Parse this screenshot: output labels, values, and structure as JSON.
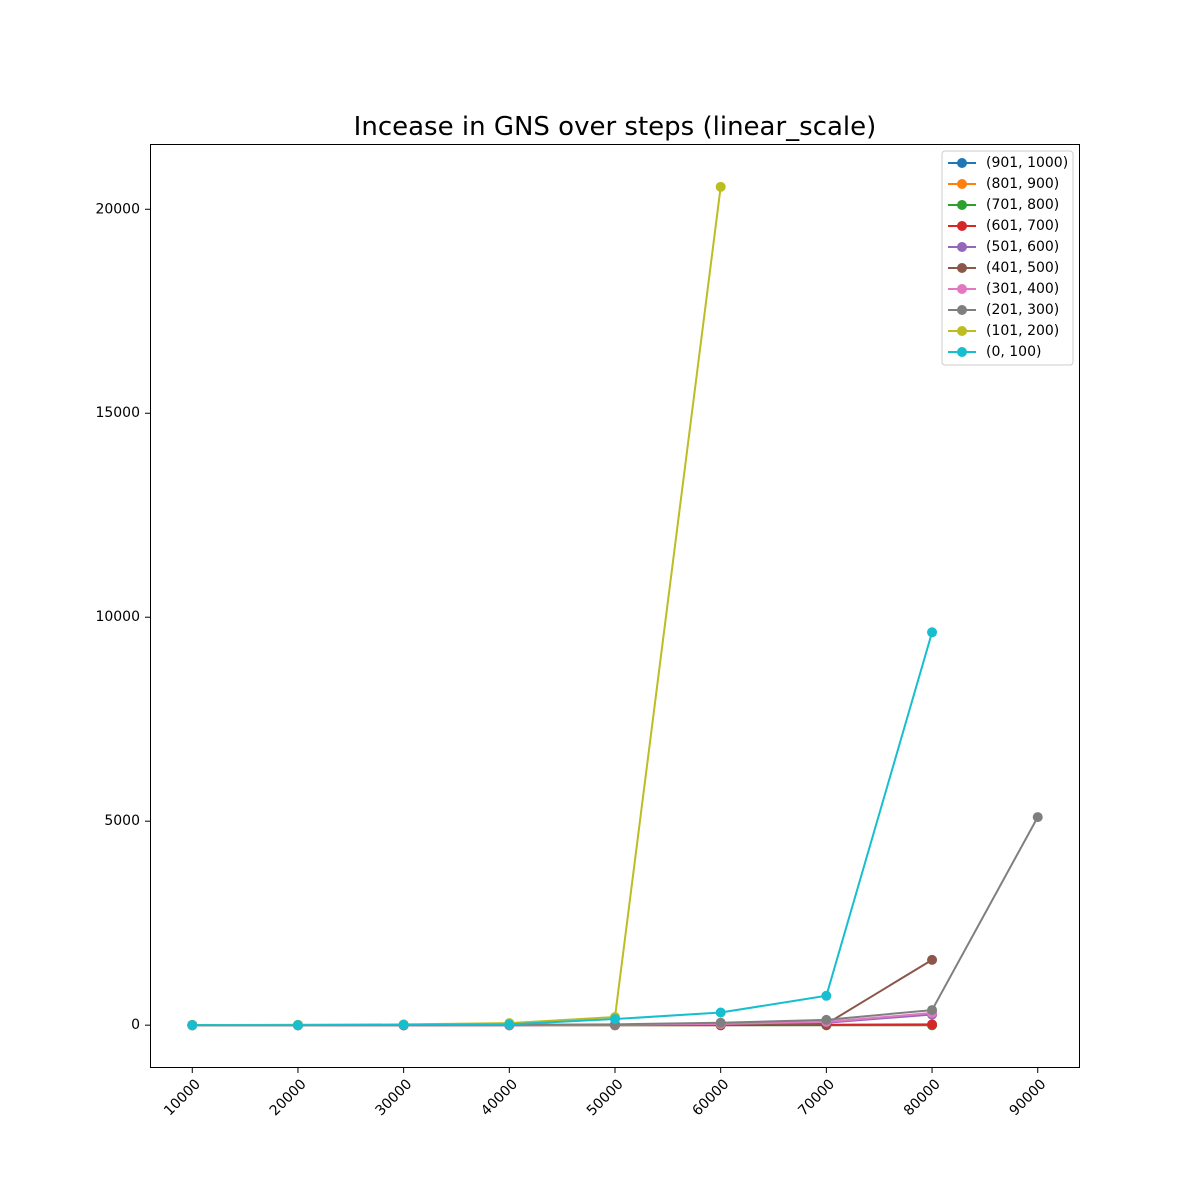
{
  "chart_data": {
    "type": "line",
    "title": "Incease in GNS over steps (linear_scale)",
    "xlabel": "",
    "ylabel": "",
    "x_ticks": [
      10000,
      20000,
      30000,
      40000,
      50000,
      60000,
      70000,
      80000,
      90000
    ],
    "y_ticks": [
      0,
      5000,
      10000,
      15000,
      20000
    ],
    "xlim": [
      6000,
      94000
    ],
    "ylim": [
      -1050,
      21600
    ],
    "grid": false,
    "legend_position": "top-right",
    "series": [
      {
        "name": "(901, 1000)",
        "color": "#1f77b4",
        "x": [
          10000,
          20000,
          30000,
          40000,
          50000,
          60000,
          70000,
          80000
        ],
        "y": [
          0,
          0,
          0,
          0,
          0,
          0,
          0,
          0
        ]
      },
      {
        "name": "(801, 900)",
        "color": "#ff7f0e",
        "x": [
          10000,
          20000,
          30000,
          40000,
          50000,
          60000,
          70000,
          80000
        ],
        "y": [
          0,
          0,
          0,
          0,
          0,
          0,
          0,
          0
        ]
      },
      {
        "name": "(701, 800)",
        "color": "#2ca02c",
        "x": [
          10000,
          20000,
          30000,
          40000,
          50000,
          60000,
          70000,
          80000
        ],
        "y": [
          0,
          0,
          0,
          0,
          0,
          0,
          0,
          0
        ]
      },
      {
        "name": "(601, 700)",
        "color": "#d62728",
        "x": [
          10000,
          20000,
          30000,
          40000,
          50000,
          60000,
          70000,
          80000
        ],
        "y": [
          0,
          0,
          0,
          0,
          0,
          0,
          10,
          20
        ]
      },
      {
        "name": "(501, 600)",
        "color": "#9467bd",
        "x": [
          10000,
          20000,
          30000,
          40000,
          50000,
          60000,
          70000,
          80000
        ],
        "y": [
          0,
          0,
          0,
          0,
          10,
          20,
          60,
          260
        ]
      },
      {
        "name": "(401, 500)",
        "color": "#8c564b",
        "x": [
          10000,
          20000,
          30000,
          40000,
          50000,
          60000,
          70000,
          80000
        ],
        "y": [
          0,
          0,
          0,
          0,
          10,
          20,
          30,
          1600
        ]
      },
      {
        "name": "(301, 400)",
        "color": "#e377c2",
        "x": [
          10000,
          20000,
          30000,
          40000,
          50000,
          60000,
          70000,
          80000
        ],
        "y": [
          0,
          0,
          0,
          0,
          10,
          30,
          80,
          300
        ]
      },
      {
        "name": "(201, 300)",
        "color": "#7f7f7f",
        "x": [
          10000,
          20000,
          30000,
          40000,
          50000,
          60000,
          70000,
          80000,
          90000
        ],
        "y": [
          0,
          0,
          0,
          10,
          20,
          60,
          130,
          370,
          5100
        ]
      },
      {
        "name": "(101, 200)",
        "color": "#bcbd22",
        "x": [
          10000,
          20000,
          30000,
          40000,
          50000,
          60000
        ],
        "y": [
          0,
          10,
          20,
          50,
          200,
          20550
        ]
      },
      {
        "name": "(0, 100)",
        "color": "#17becf",
        "x": [
          10000,
          20000,
          30000,
          40000,
          50000,
          60000,
          70000,
          80000
        ],
        "y": [
          0,
          0,
          10,
          20,
          150,
          310,
          720,
          9630
        ]
      }
    ]
  }
}
